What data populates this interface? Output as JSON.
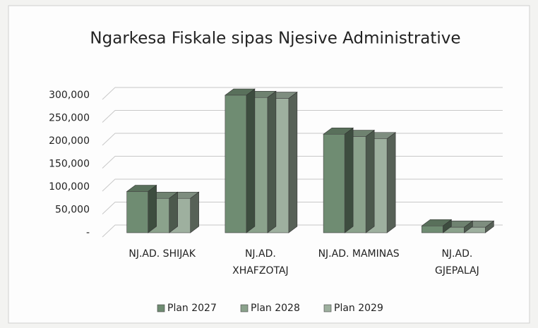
{
  "chart_data": {
    "type": "bar3d",
    "title": "Ngarkesa Fiskale sipas Njesive Administrative",
    "categories": [
      "NJ.AD. SHIJAK",
      "NJ.AD. XHAFZOTAJ",
      "NJ.AD. MAMINAS",
      "NJ.AD. GJEPALAJ"
    ],
    "series": [
      {
        "name": "Plan 2027",
        "color": "#6f8c72",
        "values": [
          90000,
          300000,
          215000,
          15000
        ]
      },
      {
        "name": "Plan 2028",
        "color": "#8ba28c",
        "values": [
          75000,
          295000,
          210000,
          12000
        ]
      },
      {
        "name": "Plan 2029",
        "color": "#9eb09f",
        "values": [
          75000,
          293000,
          205000,
          12000
        ]
      }
    ],
    "ylim": [
      0,
      300000
    ],
    "yticks": [
      {
        "value": 0,
        "label": "-"
      },
      {
        "value": 50000,
        "label": "50,000"
      },
      {
        "value": 100000,
        "label": "100,000"
      },
      {
        "value": 150000,
        "label": "150,000"
      },
      {
        "value": 200000,
        "label": "200,000"
      },
      {
        "value": 250000,
        "label": "250,000"
      },
      {
        "value": 300000,
        "label": "300,000"
      }
    ],
    "grid": true,
    "legend": "bottom"
  }
}
